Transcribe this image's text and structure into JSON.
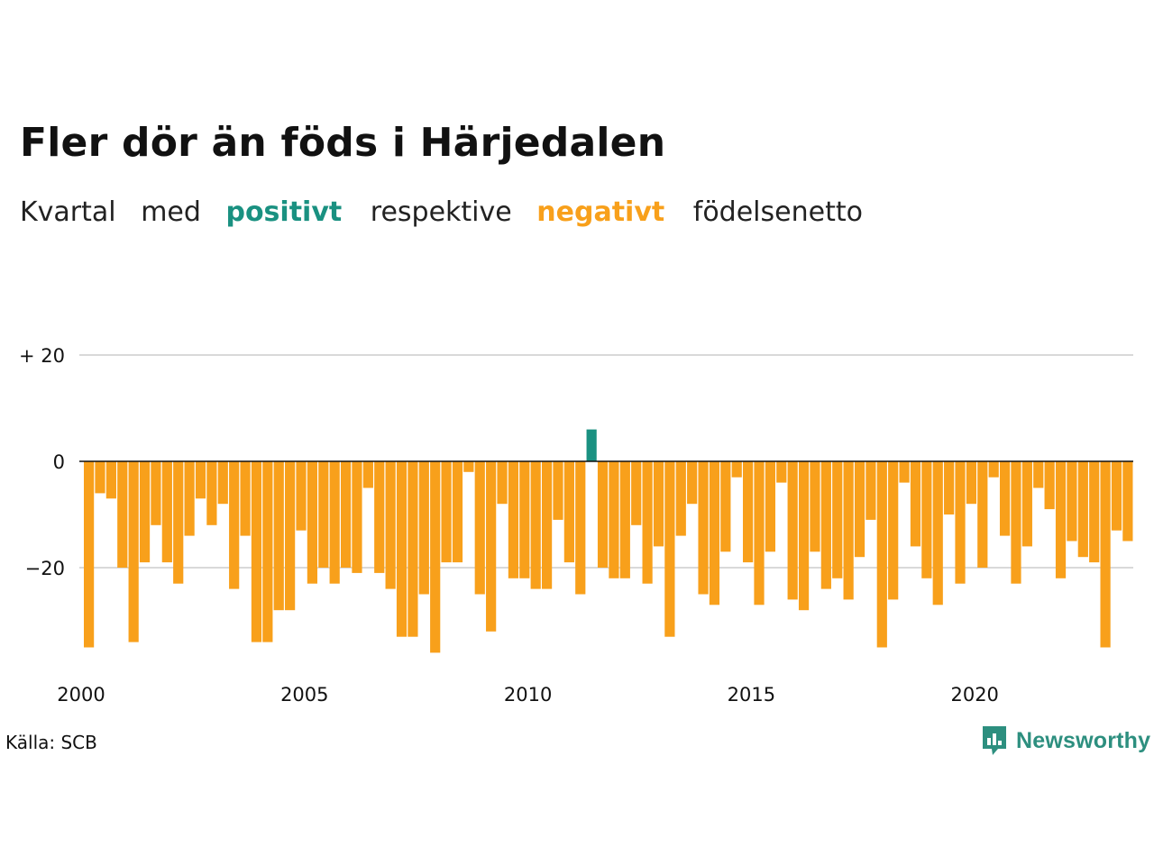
{
  "header": {
    "title": "Fler dör än föds i Härjedalen",
    "subtitle_words": [
      "Kvartal",
      "med",
      "positivt",
      "respektive",
      "negativt",
      "födelsenetto"
    ]
  },
  "footer": {
    "source": "Källa: SCB",
    "brand": "Newsworthy",
    "brand_icon": "bar-chart-speech-bubble-icon"
  },
  "colors": {
    "positive": "#1a9181",
    "negative": "#f8a01b",
    "grid": "#d9d9d9",
    "zero_line": "#111111",
    "brand": "#2d8f7f"
  },
  "chart_data": {
    "type": "bar",
    "title": "Fler dör än föds i Härjedalen",
    "subtitle": "Kvartal med positivt respektive negativt födelsenetto",
    "x_start": "2000 Q1",
    "x_ticks": [
      "2000",
      "2005",
      "2010",
      "2015",
      "2020"
    ],
    "y_ticks": [
      {
        "value": 20,
        "label": "+ 20"
      },
      {
        "value": 0,
        "label": "0"
      },
      {
        "value": -20,
        "label": "−20"
      }
    ],
    "ylim": [
      -37,
      27
    ],
    "grid": true,
    "values": [
      -35,
      -6,
      -7,
      -20,
      -34,
      -19,
      -12,
      -19,
      -23,
      -14,
      -7,
      -12,
      -8,
      -24,
      -14,
      -34,
      -34,
      -28,
      -28,
      -13,
      -23,
      -20,
      -23,
      -20,
      -21,
      -5,
      -21,
      -24,
      -33,
      -33,
      -25,
      -36,
      -19,
      -19,
      -2,
      -25,
      -32,
      -8,
      -22,
      -22,
      -24,
      -24,
      -11,
      -19,
      -25,
      6,
      -20,
      -22,
      -22,
      -12,
      -23,
      -16,
      -33,
      -14,
      -8,
      -25,
      -27,
      -17,
      -3,
      -19,
      -27,
      -17,
      -4,
      -26,
      -28,
      -17,
      -24,
      -22,
      -26,
      -18,
      -11,
      -35,
      -26,
      -4,
      -16,
      -22,
      -27,
      -10,
      -23,
      -8,
      -20,
      -3,
      -14,
      -23,
      -16,
      -5,
      -9,
      -22,
      -15,
      -18,
      -19,
      -35,
      -13,
      -15
    ]
  }
}
